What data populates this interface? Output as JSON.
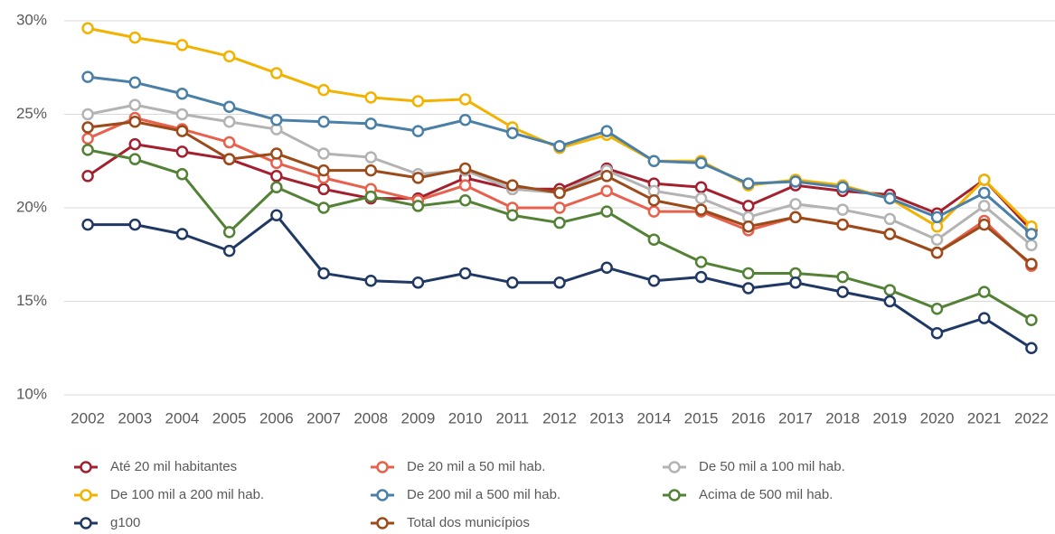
{
  "chart_data": {
    "type": "line",
    "categories": [
      "2002",
      "2003",
      "2004",
      "2005",
      "2006",
      "2007",
      "2008",
      "2009",
      "2010",
      "2011",
      "2012",
      "2013",
      "2014",
      "2015",
      "2016",
      "2017",
      "2018",
      "2019",
      "2020",
      "2021",
      "2022"
    ],
    "ylim": [
      10,
      30
    ],
    "yticks": [
      {
        "value": 10,
        "label": "10%"
      },
      {
        "value": 15,
        "label": "15%"
      },
      {
        "value": 20,
        "label": "20%"
      },
      {
        "value": 25,
        "label": "25%"
      },
      {
        "value": 30,
        "label": "30%"
      }
    ],
    "grid": true,
    "legend": "bottom",
    "series": [
      {
        "name": "Até 20 mil habitantes",
        "color": "#a3202e",
        "values": [
          21.7,
          23.4,
          23.0,
          22.6,
          21.7,
          21.0,
          20.5,
          20.5,
          21.6,
          21.0,
          21.0,
          22.1,
          21.3,
          21.1,
          20.1,
          21.2,
          20.9,
          20.7,
          19.7,
          21.5,
          18.8
        ]
      },
      {
        "name": "De 20 mil a 50 mil hab.",
        "color": "#e8614c",
        "values": [
          23.7,
          24.8,
          24.2,
          23.5,
          22.4,
          21.6,
          21.0,
          20.4,
          21.2,
          20.0,
          20.0,
          20.9,
          19.8,
          19.8,
          18.8,
          19.5,
          19.1,
          18.6,
          17.6,
          19.3,
          16.9
        ]
      },
      {
        "name": "De 50 mil a 100 mil hab.",
        "color": "#b3b3b3",
        "values": [
          25.0,
          25.5,
          25.0,
          24.6,
          24.2,
          22.9,
          22.7,
          21.8,
          22.0,
          21.0,
          20.8,
          22.0,
          20.9,
          20.5,
          19.5,
          20.2,
          19.9,
          19.4,
          18.3,
          20.1,
          18.0
        ]
      },
      {
        "name": "De 100 mil a 200 mil hab.",
        "color": "#f2b200",
        "values": [
          29.6,
          29.1,
          28.7,
          28.1,
          27.2,
          26.3,
          25.9,
          25.7,
          25.8,
          24.3,
          23.2,
          23.9,
          22.5,
          22.5,
          21.2,
          21.5,
          21.2,
          20.5,
          19.0,
          21.5,
          19.0
        ]
      },
      {
        "name": "De 200 mil a 500 mil hab.",
        "color": "#4a7fa7",
        "values": [
          27.0,
          26.7,
          26.1,
          25.4,
          24.7,
          24.6,
          24.5,
          24.1,
          24.7,
          24.0,
          23.3,
          24.1,
          22.5,
          22.4,
          21.3,
          21.4,
          21.1,
          20.5,
          19.5,
          20.8,
          18.6
        ]
      },
      {
        "name": "Acima de 500 mil hab.",
        "color": "#538135",
        "values": [
          23.1,
          22.6,
          21.8,
          18.7,
          21.1,
          20.0,
          20.6,
          20.1,
          20.4,
          19.6,
          19.2,
          19.8,
          18.3,
          17.1,
          16.5,
          16.5,
          16.3,
          15.6,
          14.6,
          15.5,
          14.0
        ]
      },
      {
        "name": "g100",
        "color": "#1f3864",
        "values": [
          19.1,
          19.1,
          18.6,
          17.7,
          19.6,
          16.5,
          16.1,
          16.0,
          16.5,
          16.0,
          16.0,
          16.8,
          16.1,
          16.3,
          15.7,
          16.0,
          15.5,
          15.0,
          13.3,
          14.1,
          12.5
        ]
      },
      {
        "name": "Total dos municípios",
        "color": "#9c4a1a",
        "values": [
          24.3,
          24.6,
          24.1,
          22.6,
          22.9,
          22.0,
          22.0,
          21.6,
          22.1,
          21.2,
          20.8,
          21.7,
          20.4,
          19.9,
          19.0,
          19.5,
          19.1,
          18.6,
          17.6,
          19.1,
          17.0
        ]
      }
    ]
  }
}
